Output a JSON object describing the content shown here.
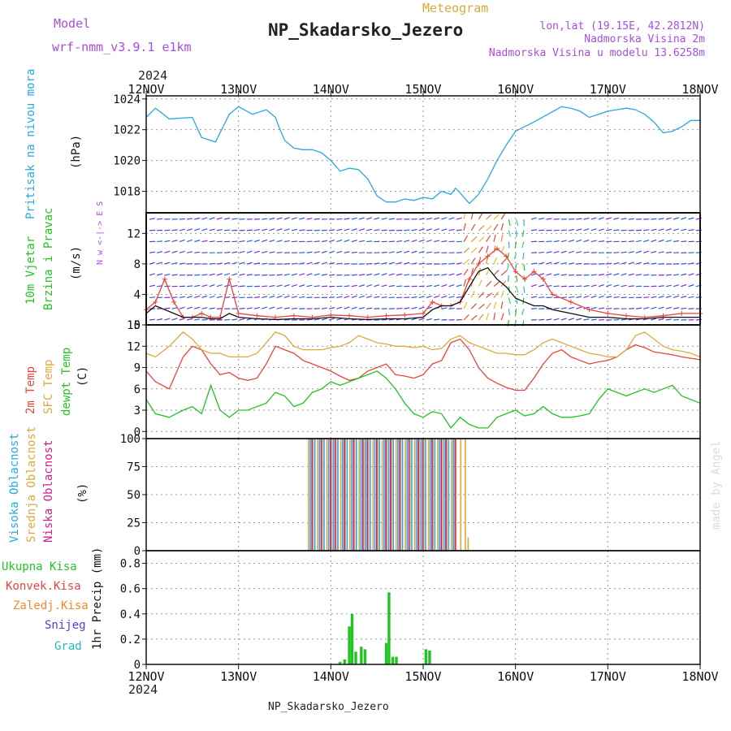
{
  "header": {
    "model_label": "Model",
    "model_name": "wrf-nmm_v3.9.1 e1km",
    "meteogram_label": "Meteogram",
    "station_title": "NP_Skadarsko_Jezero",
    "lonlat": "lon,lat (19.15E, 42.2812N)",
    "altitude": "Nadmorska Visina 2m",
    "model_altitude": "Nadmorska Visina u modelu 13.6258m",
    "year_top": "2024",
    "year_bottom": "2024",
    "footer_station": "NP_Skadarsko_Jezero",
    "watermark": "made by Angel"
  },
  "time_axis": {
    "ticks": [
      "12NOV",
      "13NOV",
      "14NOV",
      "15NOV",
      "16NOV",
      "17NOV",
      "18NOV"
    ]
  },
  "colors": {
    "pressure": "#27a9e1",
    "temp2m": "#e8453c",
    "sfc_temp": "#e0a83a",
    "dewpt": "#22c422",
    "high_cloud": "#27a9e1",
    "mid_cloud": "#e0a83a",
    "low_cloud": "#cc1f8a",
    "precip_total": "#22c422",
    "precip_conv": "#e8453c",
    "precip_frozen": "#f08a2c",
    "snow": "#4444dd",
    "grad": "#22bbbb",
    "wind_label": "#22c422",
    "model_text": "#a64ee0"
  },
  "panels": {
    "pressure": {
      "label1": "Pritisak na nivou mora",
      "unit": "(hPa)"
    },
    "wind": {
      "label1": "10m Vjetar",
      "label2": "Brzina i Pravac",
      "unit": "(m/s)",
      "compass": "N w <-|-> E S"
    },
    "temp": {
      "label1": "2m Temp",
      "label2": "SFC Temp",
      "label3": "dewpt Temp",
      "unit": "(C)"
    },
    "cloud": {
      "label1": "Visoka Oblacnost",
      "label2": "Srednja Oblacnost",
      "label3": "Niska Oblacnost",
      "unit": "(%)"
    },
    "precip": {
      "label1": "Ukupna Kisa",
      "label2": "Konvek.Kisa",
      "label3": "Zaledj.Kisa",
      "label4": "Snijeg",
      "label5": "Grad",
      "unit": "1hr Precip (mm)"
    }
  },
  "chart_data": [
    {
      "type": "line",
      "name": "pressure",
      "ylim": [
        1016.6,
        1024.2
      ],
      "yticks": [
        1018,
        1020,
        1022,
        1024
      ],
      "x": [
        0,
        0.1,
        0.25,
        0.5,
        0.6,
        0.75,
        0.8,
        0.9,
        1.0,
        1.15,
        1.3,
        1.4,
        1.45,
        1.5,
        1.6,
        1.7,
        1.8,
        1.9,
        2.0,
        2.1,
        2.2,
        2.3,
        2.4,
        2.5,
        2.6,
        2.7,
        2.8,
        2.9,
        3.0,
        3.1,
        3.2,
        3.3,
        3.35,
        3.4,
        3.5,
        3.6,
        3.7,
        3.8,
        3.9,
        4.0,
        4.2,
        4.5,
        4.6,
        4.7,
        4.8,
        5.0,
        5.2,
        5.3,
        5.4,
        5.5,
        5.6,
        5.7,
        5.8,
        5.9,
        6.0
      ],
      "series": [
        {
          "color_key": "pressure",
          "values": [
            1022.8,
            1023.4,
            1022.7,
            1022.8,
            1021.5,
            1021.2,
            1021.8,
            1023.0,
            1023.5,
            1023.0,
            1023.3,
            1022.8,
            1022.0,
            1021.3,
            1020.8,
            1020.7,
            1020.7,
            1020.5,
            1020.0,
            1019.3,
            1019.5,
            1019.4,
            1018.8,
            1017.7,
            1017.3,
            1017.3,
            1017.5,
            1017.4,
            1017.6,
            1017.5,
            1018.0,
            1017.8,
            1018.2,
            1017.9,
            1017.2,
            1017.8,
            1018.8,
            1020.0,
            1021.0,
            1021.9,
            1022.5,
            1023.5,
            1023.4,
            1023.2,
            1022.8,
            1023.2,
            1023.4,
            1023.3,
            1023.0,
            1022.5,
            1021.8,
            1021.9,
            1022.2,
            1022.6,
            1022.6
          ]
        }
      ]
    },
    {
      "type": "line",
      "name": "wind_speed",
      "ylim": [
        0,
        14.7
      ],
      "yticks": [
        0,
        4,
        8,
        12
      ],
      "x": [
        0,
        0.1,
        0.2,
        0.3,
        0.4,
        0.5,
        0.6,
        0.7,
        0.8,
        0.9,
        1.0,
        1.2,
        1.4,
        1.6,
        1.8,
        2.0,
        2.2,
        2.4,
        2.6,
        2.8,
        3.0,
        3.1,
        3.2,
        3.3,
        3.4,
        3.5,
        3.6,
        3.7,
        3.8,
        3.9,
        4.0,
        4.1,
        4.2,
        4.3,
        4.4,
        4.6,
        4.8,
        5.0,
        5.2,
        5.4,
        5.6,
        5.8,
        6.0
      ],
      "series": [
        {
          "color_key": "temp2m",
          "values": [
            2,
            3,
            6,
            3,
            1,
            1,
            1.5,
            1,
            1,
            6,
            1.5,
            1.2,
            1,
            1.2,
            1,
            1.3,
            1.2,
            1,
            1.2,
            1.3,
            1.5,
            3,
            2.5,
            2.5,
            3,
            6,
            8,
            9,
            10,
            9,
            7,
            6,
            7,
            6,
            4,
            3,
            2,
            1.5,
            1.2,
            1,
            1.2,
            1.5,
            1.5
          ]
        },
        {
          "color_key": "black",
          "values": [
            1.5,
            2.5,
            2,
            1.5,
            1,
            1,
            1,
            0.8,
            0.8,
            1.5,
            1,
            0.8,
            0.7,
            0.8,
            0.8,
            1,
            0.8,
            0.7,
            0.8,
            0.8,
            1,
            2,
            2.5,
            2.5,
            3,
            5,
            7,
            7.5,
            6,
            5,
            3.5,
            3,
            2.5,
            2.5,
            2,
            1.5,
            1,
            1,
            0.8,
            0.8,
            1,
            1,
            1
          ]
        }
      ]
    },
    {
      "type": "line",
      "name": "temperatures",
      "ylim": [
        -1,
        15
      ],
      "yticks": [
        0,
        3,
        6,
        9,
        12,
        15
      ],
      "x": [
        0,
        0.1,
        0.25,
        0.4,
        0.5,
        0.6,
        0.7,
        0.8,
        0.9,
        1.0,
        1.1,
        1.2,
        1.3,
        1.4,
        1.5,
        1.6,
        1.7,
        1.8,
        1.9,
        2.0,
        2.1,
        2.2,
        2.3,
        2.4,
        2.5,
        2.6,
        2.7,
        2.8,
        2.9,
        3.0,
        3.1,
        3.2,
        3.3,
        3.4,
        3.5,
        3.6,
        3.7,
        3.8,
        3.9,
        4.0,
        4.1,
        4.2,
        4.3,
        4.4,
        4.5,
        4.6,
        4.7,
        4.8,
        4.9,
        5.0,
        5.1,
        5.2,
        5.3,
        5.4,
        5.5,
        5.6,
        5.7,
        5.8,
        5.9,
        6.0
      ],
      "series": [
        {
          "color_key": "temp2m",
          "values": [
            8.5,
            7,
            6,
            10.5,
            12,
            11.5,
            9.5,
            8,
            8.3,
            7.5,
            7.2,
            7.5,
            9.5,
            12,
            11.5,
            11,
            10,
            9.5,
            9,
            8.5,
            7.8,
            7.2,
            7.5,
            8.5,
            9,
            9.5,
            8,
            7.8,
            7.5,
            8,
            9.5,
            10,
            12.5,
            13,
            11.5,
            9,
            7.5,
            6.8,
            6.2,
            5.8,
            5.8,
            7.5,
            9.5,
            11,
            11.5,
            10.5,
            10,
            9.5,
            9.8,
            10,
            10.5,
            11.5,
            12.2,
            11.8,
            11.2,
            11,
            10.8,
            10.5,
            10.3,
            10.1
          ]
        },
        {
          "color_key": "sfc_temp",
          "values": [
            11,
            10.5,
            12,
            14,
            13,
            11.5,
            11,
            11,
            10.5,
            10.5,
            10.5,
            11,
            12.5,
            14,
            13.5,
            12,
            11.5,
            11.5,
            11.5,
            11.8,
            12,
            12.5,
            13.5,
            13,
            12.5,
            12.3,
            12,
            12,
            11.8,
            12,
            11.5,
            11.7,
            13,
            13.5,
            12.5,
            12,
            11.5,
            11,
            11,
            10.8,
            10.8,
            11.5,
            12.5,
            13,
            12.5,
            12,
            11.5,
            11,
            10.8,
            10.5,
            10.5,
            11.5,
            13.5,
            14,
            13,
            12,
            11.5,
            11.3,
            11,
            10.5
          ]
        },
        {
          "color_key": "dewpt",
          "values": [
            4.5,
            2.5,
            2,
            3,
            3.5,
            2.5,
            6.5,
            3,
            2,
            3,
            3,
            3.5,
            4,
            5.5,
            5,
            3.5,
            4,
            5.5,
            6,
            7,
            6.5,
            7,
            7.5,
            8,
            8.5,
            7.5,
            6,
            4,
            2.5,
            2,
            2.8,
            2.5,
            0.5,
            2,
            1,
            0.5,
            0.5,
            2,
            2.5,
            3,
            2.2,
            2.5,
            3.5,
            2.5,
            2,
            2,
            2.2,
            2.5,
            4.5,
            6,
            5.5,
            5,
            5.5,
            6,
            5.5,
            6,
            6.5,
            5,
            4.5,
            4
          ]
        }
      ]
    },
    {
      "type": "bar",
      "name": "cloud_cover",
      "ylim": [
        0,
        100
      ],
      "yticks": [
        0,
        25,
        50,
        75,
        100
      ],
      "x": [
        1.75,
        1.8,
        1.85,
        1.9,
        1.95,
        2.0,
        2.05,
        2.1,
        2.15,
        2.2,
        2.25,
        2.3,
        2.35,
        2.4,
        2.45,
        2.5,
        2.55,
        2.6,
        2.65,
        2.7,
        2.75,
        2.8,
        2.85,
        2.9,
        2.95,
        3.0,
        3.05,
        3.1,
        3.15,
        3.2,
        3.25,
        3.3,
        3.35,
        3.4,
        3.45
      ],
      "series": [
        {
          "color_key": "mid_cloud",
          "values": [
            100,
            100,
            100,
            100,
            100,
            100,
            100,
            100,
            100,
            100,
            100,
            100,
            100,
            100,
            100,
            100,
            100,
            100,
            100,
            100,
            100,
            100,
            100,
            100,
            100,
            100,
            100,
            100,
            100,
            100,
            100,
            100,
            100,
            100,
            100
          ]
        },
        {
          "color_key": "high_cloud",
          "values": [
            100,
            100,
            100,
            100,
            100,
            100,
            100,
            100,
            100,
            100,
            100,
            100,
            100,
            100,
            100,
            100,
            100,
            100,
            100,
            100,
            100,
            100,
            100,
            100,
            100,
            100,
            100,
            100,
            100,
            100,
            100,
            100,
            0,
            0,
            0
          ]
        },
        {
          "color_key": "low_cloud",
          "values": [
            100,
            0,
            100,
            0,
            100,
            100,
            0,
            100,
            0,
            100,
            0,
            100,
            100,
            0,
            100,
            0,
            100,
            100,
            0,
            100,
            0,
            100,
            0,
            100,
            100,
            0,
            100,
            0,
            100,
            100,
            0,
            100,
            0,
            0,
            0
          ]
        }
      ]
    },
    {
      "type": "bar",
      "name": "precip",
      "ylim": [
        0,
        0.9
      ],
      "yticks": [
        0,
        0.2,
        0.4,
        0.6,
        0.8
      ],
      "x": [
        2.1,
        2.15,
        2.2,
        2.23,
        2.27,
        2.33,
        2.37,
        2.6,
        2.63,
        2.67,
        2.71,
        3.03,
        3.07
      ],
      "series": [
        {
          "color_key": "precip_total",
          "values": [
            0.02,
            0.04,
            0.3,
            0.4,
            0.1,
            0.14,
            0.12,
            0.17,
            0.57,
            0.06,
            0.06,
            0.12,
            0.11
          ]
        }
      ]
    }
  ]
}
